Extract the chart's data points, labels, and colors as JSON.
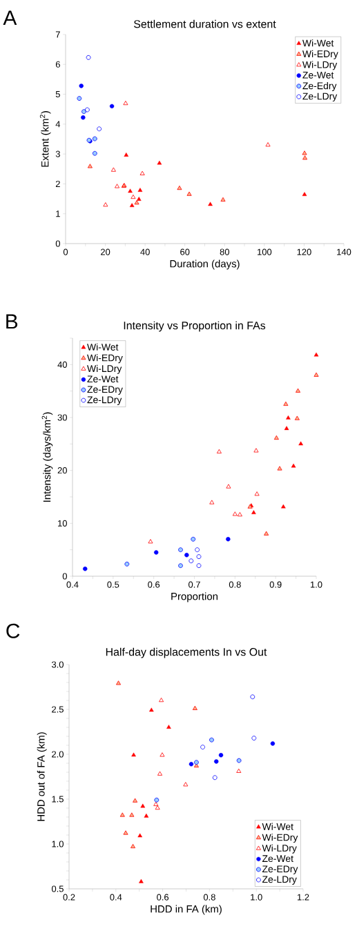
{
  "chart_data": [
    {
      "type": "scatter",
      "title": "Settlement duration vs extent",
      "xlabel": "Duration (days)",
      "ylabel": "Extent (km$^{2}$)",
      "annotations": [
        "A"
      ],
      "xlim": [
        0,
        140
      ],
      "ylim": [
        0,
        7
      ],
      "xticks": [
        0,
        {
          "value": 10,
          "label": null
        },
        20,
        {
          "value": 30,
          "label": null
        },
        40,
        {
          "value": 50,
          "label": null
        },
        60,
        {
          "value": 70,
          "label": null
        },
        80,
        {
          "value": 90,
          "label": null
        },
        100,
        {
          "value": 110,
          "label": null
        },
        120,
        {
          "value": 130,
          "label": null
        },
        140
      ],
      "yticks": [
        0,
        1,
        2,
        3,
        4,
        5,
        6,
        7
      ],
      "grid": false,
      "legend": "top right",
      "series": [
        {
          "name": "Wi-Wet",
          "color": "#ff0000",
          "marker": "triangle",
          "x": [
            30.5,
            47.2,
            32.5,
            37.5,
            36.9,
            33.4,
            72.8,
            120.2
          ],
          "values": [
            2.96,
            2.69,
            1.75,
            1.78,
            1.48,
            1.27,
            1.31,
            1.64
          ]
        },
        {
          "name": "Wi-EDry",
          "color": "#f9b48a",
          "marker": "triangle",
          "x": [
            12.3,
            29.3,
            35.8,
            57.3,
            62.2,
            79.2,
            120.2,
            120.4
          ],
          "values": [
            2.58,
            1.92,
            1.36,
            1.85,
            1.65,
            1.46,
            3.02,
            2.86
          ]
        },
        {
          "name": "Wi-LDry",
          "color": "#ff0000",
          "marker": "triangle",
          "x": [
            30.2,
            24.1,
            38.6,
            25.9,
            29.5,
            34.0,
            20.1,
            101.8
          ],
          "values": [
            4.69,
            2.46,
            2.34,
            1.91,
            1.94,
            1.55,
            1.29,
            3.3
          ]
        },
        {
          "name": "Ze-Wet",
          "color": "#0000ff",
          "marker": "circle",
          "x": [
            7.9,
            8.8,
            23.3,
            12.3
          ],
          "values": [
            5.28,
            4.22,
            4.6,
            3.43
          ]
        },
        {
          "name": "Ze-Edry",
          "color": "#99ccff",
          "marker": "circle",
          "x": [
            6.9,
            9.2,
            14.7,
            14.7,
            11.8
          ],
          "values": [
            4.86,
            4.42,
            3.51,
            3.02,
            3.46
          ]
        },
        {
          "name": "Ze-LDry",
          "color": "#0000ff",
          "marker": "circle",
          "x": [
            11.5,
            10.9,
            16.9
          ],
          "values": [
            6.23,
            4.48,
            3.84
          ]
        }
      ]
    },
    {
      "type": "scatter",
      "title": "Intensity vs Proportion in FAs",
      "xlabel": "Proportion",
      "ylabel": "Intensity (days/km$^{2}$)",
      "annotations": [
        "B"
      ],
      "xlim": [
        0.4,
        1.0
      ],
      "ylim": [
        0,
        45
      ],
      "xticks": [
        {
          "value": 0.4,
          "label": "0.4"
        },
        {
          "value": 0.45,
          "label": null
        },
        {
          "value": 0.5,
          "label": "0.5"
        },
        {
          "value": 0.55,
          "label": null
        },
        {
          "value": 0.6,
          "label": "0.6"
        },
        {
          "value": 0.65,
          "label": null
        },
        {
          "value": 0.7,
          "label": "0.7"
        },
        {
          "value": 0.75,
          "label": null
        },
        {
          "value": 0.8,
          "label": "0.8"
        },
        {
          "value": 0.85,
          "label": null
        },
        {
          "value": 0.9,
          "label": "0.9"
        },
        {
          "value": 0.95,
          "label": null
        },
        {
          "value": 1.0,
          "label": "1.0"
        }
      ],
      "yticks": [
        0,
        {
          "value": 5,
          "label": null
        },
        10,
        {
          "value": 15,
          "label": null
        },
        20,
        {
          "value": 25,
          "label": null
        },
        30,
        {
          "value": 35,
          "label": null
        },
        40,
        {
          "value": 45,
          "label": null
        }
      ],
      "grid": false,
      "legend": "top left",
      "series": [
        {
          "name": "Wi-Wet",
          "color": "#ff0000",
          "marker": "triangle",
          "x": [
            1.0,
            0.931,
            0.927,
            0.962,
            0.944,
            0.919,
            0.84,
            0.846
          ],
          "values": [
            41.8,
            29.9,
            27.9,
            25.0,
            20.8,
            13.1,
            13.3,
            12.0
          ]
        },
        {
          "name": "Wi-EDry",
          "color": "#f9b48a",
          "marker": "triangle",
          "x": [
            1.0,
            0.955,
            0.925,
            0.953,
            0.902,
            0.91,
            0.837,
            0.877
          ],
          "values": [
            38.0,
            35.0,
            32.5,
            29.8,
            26.1,
            20.3,
            13.1,
            8.0
          ]
        },
        {
          "name": "Wi-LDry",
          "color": "#ff0000",
          "marker": "triangle",
          "x": [
            0.761,
            0.852,
            0.784,
            0.854,
            0.743,
            0.8,
            0.812,
            0.592
          ],
          "values": [
            23.5,
            23.7,
            16.9,
            15.5,
            13.9,
            11.7,
            11.6,
            6.5
          ]
        },
        {
          "name": "Ze-Wet",
          "color": "#0000ff",
          "marker": "circle",
          "x": [
            0.431,
            0.606,
            0.681,
            0.783
          ],
          "values": [
            1.4,
            4.5,
            4.0,
            7.0
          ]
        },
        {
          "name": "Ze-EDry",
          "color": "#99ccff",
          "marker": "circle",
          "x": [
            0.534,
            0.666,
            0.666,
            0.697
          ],
          "values": [
            2.3,
            5.0,
            2.0,
            7.0
          ]
        },
        {
          "name": "Ze-LDry",
          "color": "#0000ff",
          "marker": "circle",
          "x": [
            0.707,
            0.711,
            0.692,
            0.711
          ],
          "values": [
            5.0,
            3.7,
            2.9,
            2.0
          ]
        }
      ]
    },
    {
      "type": "scatter",
      "title": "Half-day displacements In vs Out",
      "xlabel": "HDD in FA (km)",
      "ylabel": "HDD out of FA (km)",
      "annotations": [
        "C"
      ],
      "xlim": [
        0.2,
        1.2
      ],
      "ylim": [
        0.5,
        3.0
      ],
      "xticks": [
        {
          "value": 0.2,
          "label": "0.2"
        },
        {
          "value": 0.3,
          "label": null
        },
        {
          "value": 0.4,
          "label": "0.4"
        },
        {
          "value": 0.5,
          "label": null
        },
        {
          "value": 0.6,
          "label": "0.6"
        },
        {
          "value": 0.7,
          "label": null
        },
        {
          "value": 0.8,
          "label": "0.8"
        },
        {
          "value": 0.9,
          "label": null
        },
        {
          "value": 1.0,
          "label": "1.0"
        },
        {
          "value": 1.1,
          "label": null
        },
        {
          "value": 1.2,
          "label": "1.2"
        }
      ],
      "yticks": [
        {
          "value": 0.5,
          "label": "0.5"
        },
        {
          "value": 0.6,
          "label": null
        },
        {
          "value": 0.7,
          "label": null
        },
        {
          "value": 0.8,
          "label": null
        },
        {
          "value": 0.9,
          "label": null
        },
        {
          "value": 1.0,
          "label": "1.0"
        },
        {
          "value": 1.1,
          "label": null
        },
        {
          "value": 1.2,
          "label": null
        },
        {
          "value": 1.3,
          "label": null
        },
        {
          "value": 1.4,
          "label": null
        },
        {
          "value": 1.5,
          "label": "1.5"
        },
        {
          "value": 1.6,
          "label": null
        },
        {
          "value": 1.7,
          "label": null
        },
        {
          "value": 1.8,
          "label": null
        },
        {
          "value": 1.9,
          "label": null
        },
        {
          "value": 2.0,
          "label": "2.0"
        },
        {
          "value": 2.1,
          "label": null
        },
        {
          "value": 2.2,
          "label": null
        },
        {
          "value": 2.3,
          "label": null
        },
        {
          "value": 2.4,
          "label": null
        },
        {
          "value": 2.5,
          "label": "2.5"
        },
        {
          "value": 2.6,
          "label": null
        },
        {
          "value": 2.7,
          "label": null
        },
        {
          "value": 2.8,
          "label": null
        },
        {
          "value": 2.9,
          "label": null
        },
        {
          "value": 3.0,
          "label": "3.0"
        }
      ],
      "grid": false,
      "legend": "bottom right",
      "series": [
        {
          "name": "Wi-Wet",
          "color": "#ff0000",
          "marker": "triangle",
          "x": [
            0.552,
            0.626,
            0.476,
            0.515,
            0.53,
            0.503,
            0.508
          ],
          "values": [
            2.49,
            2.3,
            1.99,
            1.42,
            1.31,
            1.09,
            0.58
          ]
        },
        {
          "name": "Wi-EDry",
          "color": "#f9b48a",
          "marker": "triangle",
          "x": [
            0.411,
            0.738,
            0.482,
            0.428,
            0.468,
            0.442,
            0.473,
            0.744
          ],
          "values": [
            2.79,
            2.51,
            1.48,
            1.32,
            1.32,
            1.12,
            0.97,
            1.87
          ]
        },
        {
          "name": "Wi-LDry",
          "color": "#ff0000",
          "marker": "triangle",
          "x": [
            0.594,
            0.598,
            0.588,
            0.698,
            0.925,
            0.571,
            0.578
          ],
          "values": [
            2.6,
            1.99,
            1.78,
            1.66,
            1.81,
            1.44,
            1.4
          ]
        },
        {
          "name": "Ze-Wet",
          "color": "#0000ff",
          "marker": "circle",
          "x": [
            0.722,
            0.829,
            0.849,
            1.07
          ],
          "values": [
            1.89,
            1.92,
            1.99,
            2.12
          ]
        },
        {
          "name": "Ze-EDry",
          "color": "#99ccff",
          "marker": "circle",
          "x": [
            0.574,
            0.744,
            0.809,
            0.926
          ],
          "values": [
            1.49,
            1.91,
            2.16,
            1.93
          ]
        },
        {
          "name": "Ze-LDry",
          "color": "#0000ff",
          "marker": "circle",
          "x": [
            0.984,
            0.99,
            0.771,
            0.823
          ],
          "values": [
            2.64,
            2.18,
            2.08,
            1.74
          ]
        }
      ]
    }
  ]
}
